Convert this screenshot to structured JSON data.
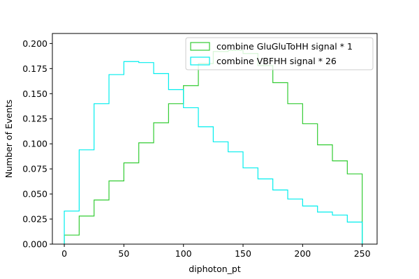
{
  "chart_data": {
    "type": "histogram",
    "xlabel": "diphoton_pt",
    "ylabel": "Number of Events",
    "xlim": [
      -10,
      262.5
    ],
    "ylim": [
      0,
      0.21
    ],
    "bin_edges": [
      0,
      12.5,
      25,
      37.5,
      50,
      62.5,
      75,
      87.5,
      100,
      112.5,
      125,
      137.5,
      150,
      162.5,
      175,
      187.5,
      200,
      212.5,
      225,
      237.5,
      250
    ],
    "x_ticks": [
      0,
      50,
      100,
      150,
      200,
      250
    ],
    "x_tick_labels": [
      "0",
      "50",
      "100",
      "150",
      "200",
      "250"
    ],
    "y_ticks": [
      0,
      0.025,
      0.05,
      0.075,
      0.1,
      0.125,
      0.15,
      0.175,
      0.2
    ],
    "y_tick_labels": [
      "0.000",
      "0.025",
      "0.050",
      "0.075",
      "0.100",
      "0.125",
      "0.150",
      "0.175",
      "0.200"
    ],
    "grid": false,
    "legend_position": "top-right",
    "series": [
      {
        "name": "combine GluGluToHH signal * 1",
        "color": "#33cc33",
        "values": [
          0.009,
          0.028,
          0.044,
          0.063,
          0.081,
          0.101,
          0.121,
          0.14,
          0.158,
          0.18,
          0.192,
          0.193,
          0.19,
          0.178,
          0.161,
          0.14,
          0.12,
          0.099,
          0.083,
          0.07
        ]
      },
      {
        "name": "combine VBFHH signal * 26",
        "color": "#00eeee",
        "values": [
          0.033,
          0.094,
          0.14,
          0.169,
          0.182,
          0.181,
          0.17,
          0.154,
          0.136,
          0.117,
          0.102,
          0.092,
          0.076,
          0.065,
          0.054,
          0.045,
          0.038,
          0.032,
          0.029,
          0.022
        ]
      }
    ]
  }
}
